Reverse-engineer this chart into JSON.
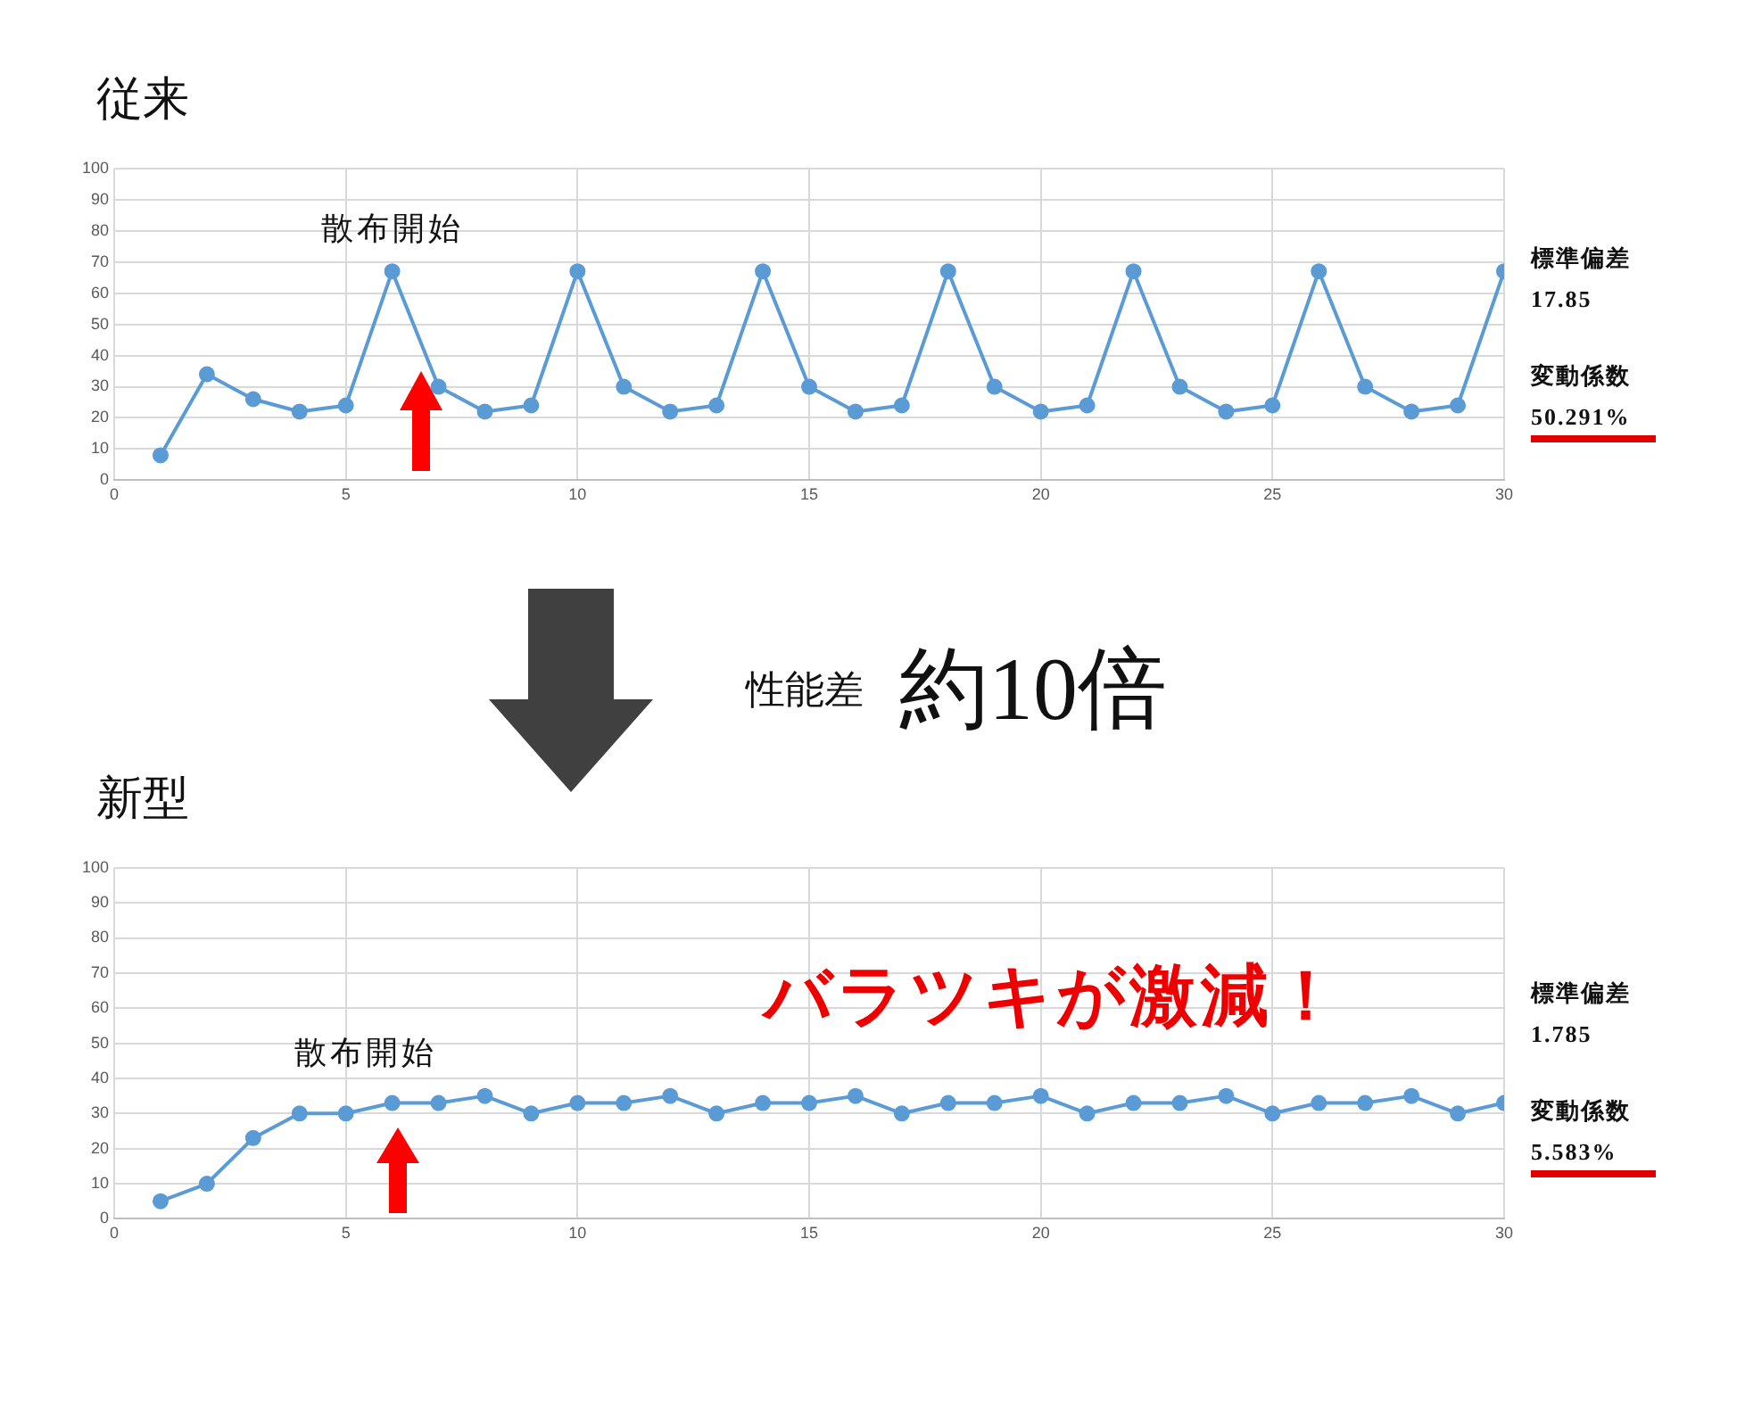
{
  "chart_data": [
    {
      "type": "line",
      "title": "従来",
      "x": [
        1,
        2,
        3,
        4,
        5,
        6,
        7,
        8,
        9,
        10,
        11,
        12,
        13,
        14,
        15,
        16,
        17,
        18,
        19,
        20,
        21,
        22,
        23,
        24,
        25,
        26,
        27,
        28,
        29,
        30
      ],
      "values": [
        8,
        34,
        26,
        22,
        24,
        67,
        30,
        22,
        24,
        67,
        30,
        22,
        24,
        67,
        30,
        22,
        24,
        67,
        30,
        22,
        24,
        67,
        30,
        22,
        24,
        67,
        30,
        22,
        24,
        67
      ],
      "color": "#5b9bd5",
      "xlim": [
        0,
        30
      ],
      "xticks": [
        0,
        5,
        10,
        15,
        20,
        25,
        30
      ],
      "ylim": [
        0,
        100
      ],
      "yticks": [
        0,
        10,
        20,
        30,
        40,
        50,
        60,
        70,
        80,
        90,
        100
      ],
      "grid": true,
      "marker": "circle",
      "annotations": [
        "散布開始",
        "性能差",
        "約10倍",
        "標準偏差",
        "17.85",
        "変動係数",
        "50.291%"
      ]
    },
    {
      "type": "line",
      "title": "新型",
      "x": [
        1,
        2,
        3,
        4,
        5,
        6,
        7,
        8,
        9,
        10,
        11,
        12,
        13,
        14,
        15,
        16,
        17,
        18,
        19,
        20,
        21,
        22,
        23,
        24,
        25,
        26,
        27,
        28,
        29,
        30
      ],
      "values": [
        5,
        10,
        23,
        30,
        30,
        33,
        33,
        35,
        30,
        33,
        33,
        35,
        30,
        33,
        33,
        35,
        30,
        33,
        33,
        35,
        30,
        33,
        33,
        35,
        30,
        33,
        33,
        35,
        30,
        33
      ],
      "color": "#5b9bd5",
      "xlim": [
        0,
        30
      ],
      "xticks": [
        0,
        5,
        10,
        15,
        20,
        25,
        30
      ],
      "ylim": [
        0,
        100
      ],
      "yticks": [
        0,
        10,
        20,
        30,
        40,
        50,
        60,
        70,
        80,
        90,
        100
      ],
      "grid": true,
      "marker": "circle",
      "annotations": [
        "散布開始",
        "バラツキが激減！",
        "標準偏差",
        "1.785",
        "変動係数",
        "5.583%"
      ]
    }
  ]
}
